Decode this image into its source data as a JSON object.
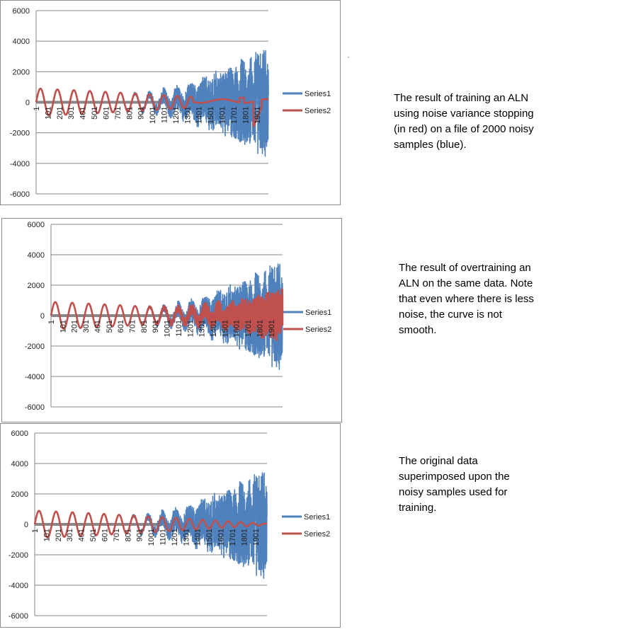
{
  "chart_data": [
    {
      "type": "line",
      "x_ticks": [
        "1",
        "101",
        "201",
        "301",
        "401",
        "501",
        "601",
        "701",
        "801",
        "901",
        "1001",
        "1101",
        "1201",
        "1301",
        "1401",
        "1501",
        "1601",
        "1701",
        "1801",
        "1901"
      ],
      "y_ticks": [
        "6000",
        "4000",
        "2000",
        "0",
        "-2000",
        "-4000",
        "-6000"
      ],
      "ylim": [
        -6000,
        6000
      ],
      "x_count": 2000,
      "grid": true,
      "legend_position": "right",
      "series": [
        {
          "name": "Series1",
          "color": "#4f81bd",
          "generator": "noisy"
        },
        {
          "name": "Series2",
          "color": "#c0504d",
          "generator": "trained"
        }
      ],
      "caption": "The result of training an ALN using noise variance stopping (in red) on a file of 2000 noisy samples (blue)."
    },
    {
      "type": "line",
      "x_ticks": [
        "1",
        "101",
        "201",
        "301",
        "401",
        "501",
        "601",
        "701",
        "801",
        "901",
        "1001",
        "1101",
        "1201",
        "1301",
        "1401",
        "1501",
        "1601",
        "1701",
        "1801",
        "1901"
      ],
      "y_ticks": [
        "6000",
        "4000",
        "2000",
        "0",
        "-2000",
        "-4000",
        "-6000"
      ],
      "ylim": [
        -6000,
        6000
      ],
      "x_count": 2000,
      "grid": true,
      "legend_position": "right",
      "series": [
        {
          "name": "Series1",
          "color": "#4f81bd",
          "generator": "noisy"
        },
        {
          "name": "Series2",
          "color": "#c0504d",
          "generator": "overtrained"
        }
      ],
      "caption": "The result of overtraining an ALN on the same data. Note that even where there is less noise, the curve is not smooth."
    },
    {
      "type": "line",
      "x_ticks": [
        "1",
        "101",
        "201",
        "301",
        "401",
        "501",
        "601",
        "701",
        "801",
        "901",
        "1001",
        "1101",
        "1201",
        "1301",
        "1401",
        "1501",
        "1601",
        "1701",
        "1801",
        "1901"
      ],
      "y_ticks": [
        "6000",
        "4000",
        "2000",
        "0",
        "-2000",
        "-4000",
        "-6000"
      ],
      "ylim": [
        -6000,
        6000
      ],
      "x_count": 2000,
      "grid": true,
      "legend_position": "right",
      "series": [
        {
          "name": "Series1",
          "color": "#4f81bd",
          "generator": "noisy"
        },
        {
          "name": "Series2",
          "color": "#c0504d",
          "generator": "original"
        }
      ],
      "caption": "The original data superimposed upon the noisy samples used for training."
    }
  ],
  "colors": {
    "axis_line": "#878787",
    "gridline": "#878787",
    "plot_border": "#8c8c8c"
  }
}
